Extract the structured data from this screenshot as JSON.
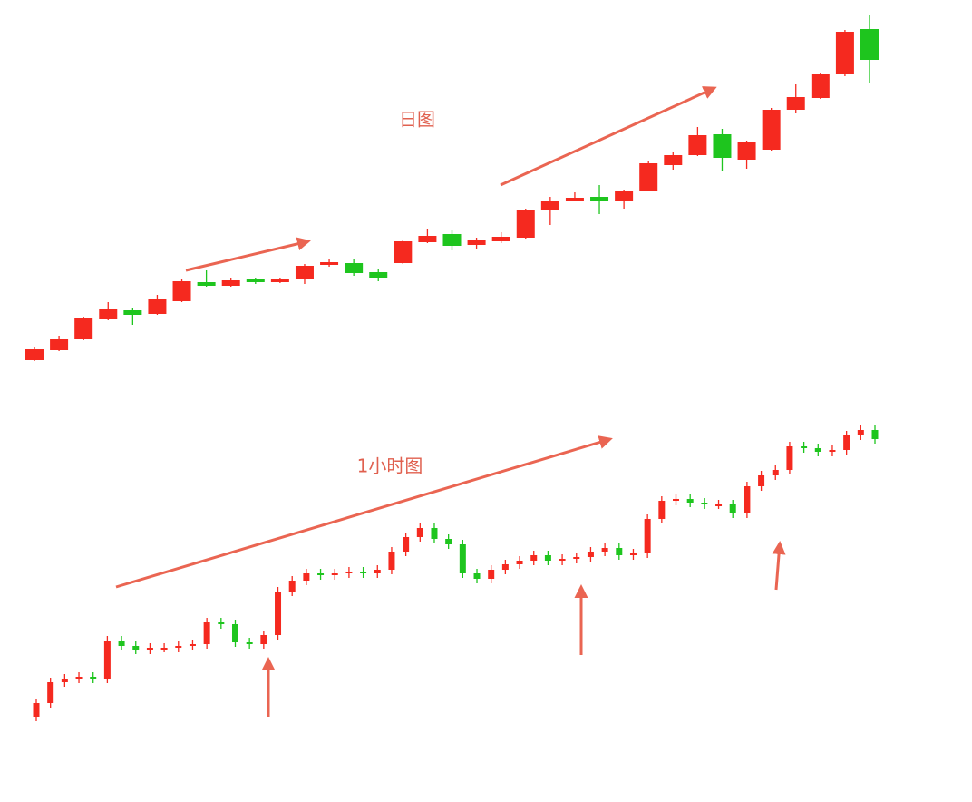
{
  "chart_data": [
    {
      "type": "candlestick",
      "annotation": "日图",
      "up_color": "#f5291f",
      "down_color": "#1ec51e",
      "ylim": [
        0,
        390
      ],
      "categories": [
        null,
        null,
        null,
        null,
        null,
        null,
        null,
        null,
        null,
        null,
        null,
        null,
        null,
        null,
        null,
        null,
        null,
        null,
        null,
        null,
        null,
        null,
        null,
        null,
        null,
        null,
        null,
        null,
        null,
        null,
        null,
        null,
        null,
        null,
        null
      ],
      "open": [
        3,
        14,
        26,
        48,
        58,
        54,
        68,
        89,
        85,
        92,
        89,
        92,
        108,
        110,
        100,
        110,
        133,
        142,
        130,
        134,
        138,
        169,
        179,
        183,
        178,
        190,
        218,
        229,
        252,
        224,
        235,
        279,
        292,
        318,
        368
      ],
      "close": [
        15,
        26,
        49,
        59,
        53,
        70,
        90,
        85,
        91,
        89,
        93,
        107,
        111,
        99,
        94,
        134,
        140,
        129,
        136,
        139,
        168,
        179,
        182,
        178,
        190,
        220,
        229,
        251,
        226,
        243,
        279,
        293,
        318,
        365,
        334
      ],
      "high": [
        17,
        30,
        51,
        67,
        60,
        75,
        92,
        102,
        94,
        94,
        94,
        109,
        115,
        114,
        104,
        136,
        148,
        146,
        138,
        144,
        170,
        183,
        188,
        196,
        191,
        222,
        232,
        260,
        258,
        245,
        281,
        307,
        320,
        367,
        383
      ],
      "low": [
        2,
        13,
        25,
        47,
        42,
        53,
        67,
        84,
        84,
        87,
        88,
        87,
        106,
        96,
        90,
        109,
        132,
        124,
        125,
        132,
        137,
        152,
        178,
        164,
        170,
        189,
        213,
        228,
        212,
        214,
        234,
        275,
        291,
        316,
        308
      ]
    },
    {
      "type": "candlestick",
      "annotation": "1小时图",
      "up_color": "#f5291f",
      "down_color": "#1ec51e",
      "ylim": [
        0,
        450
      ],
      "categories": [
        null,
        null,
        null,
        null,
        null,
        null,
        null,
        null,
        null,
        null,
        null,
        null,
        null,
        null,
        null,
        null,
        null,
        null,
        null,
        null,
        null,
        null,
        null,
        null,
        null,
        null,
        null,
        null,
        null,
        null,
        null,
        null,
        null,
        null,
        null,
        null,
        null,
        null,
        null,
        null,
        null,
        null,
        null,
        null,
        null,
        null,
        null,
        null,
        null,
        null,
        null,
        null,
        null,
        null,
        null,
        null,
        null,
        null,
        null,
        null
      ],
      "open": [
        94,
        109,
        132,
        136,
        138,
        136,
        178,
        172,
        168,
        170,
        170,
        172,
        174,
        198,
        196,
        176,
        174,
        184,
        232,
        244,
        252,
        250,
        252,
        254,
        252,
        256,
        276,
        292,
        302,
        290,
        284,
        252,
        246,
        256,
        262,
        266,
        272,
        266,
        268,
        270,
        276,
        280,
        272,
        274,
        312,
        332,
        334,
        330,
        328,
        328,
        318,
        348,
        360,
        366,
        392,
        390,
        386,
        388,
        404,
        410
      ],
      "close": [
        109,
        132,
        136,
        138,
        136,
        178,
        172,
        168,
        170,
        170,
        172,
        174,
        198,
        196,
        176,
        174,
        184,
        232,
        244,
        252,
        250,
        252,
        254,
        252,
        256,
        276,
        292,
        302,
        290,
        284,
        252,
        246,
        256,
        262,
        266,
        272,
        266,
        268,
        270,
        276,
        280,
        272,
        274,
        312,
        332,
        334,
        330,
        328,
        328,
        318,
        348,
        360,
        366,
        392,
        390,
        386,
        388,
        404,
        410,
        400
      ],
      "high": [
        114,
        137,
        141,
        143,
        143,
        183,
        183,
        177,
        175,
        175,
        177,
        179,
        203,
        203,
        201,
        181,
        189,
        237,
        249,
        257,
        257,
        257,
        259,
        259,
        261,
        281,
        297,
        307,
        307,
        295,
        289,
        257,
        261,
        267,
        271,
        277,
        277,
        273,
        275,
        281,
        285,
        285,
        279,
        317,
        337,
        339,
        339,
        335,
        333,
        333,
        353,
        365,
        371,
        397,
        397,
        395,
        393,
        409,
        415,
        415
      ],
      "low": [
        89,
        104,
        127,
        131,
        131,
        131,
        167,
        163,
        163,
        165,
        165,
        167,
        169,
        191,
        171,
        169,
        169,
        179,
        227,
        239,
        245,
        245,
        247,
        247,
        247,
        251,
        271,
        287,
        285,
        279,
        247,
        241,
        241,
        251,
        257,
        261,
        261,
        261,
        263,
        265,
        271,
        267,
        267,
        269,
        307,
        327,
        325,
        323,
        323,
        313,
        313,
        343,
        355,
        361,
        385,
        381,
        381,
        383,
        399,
        395
      ]
    }
  ]
}
